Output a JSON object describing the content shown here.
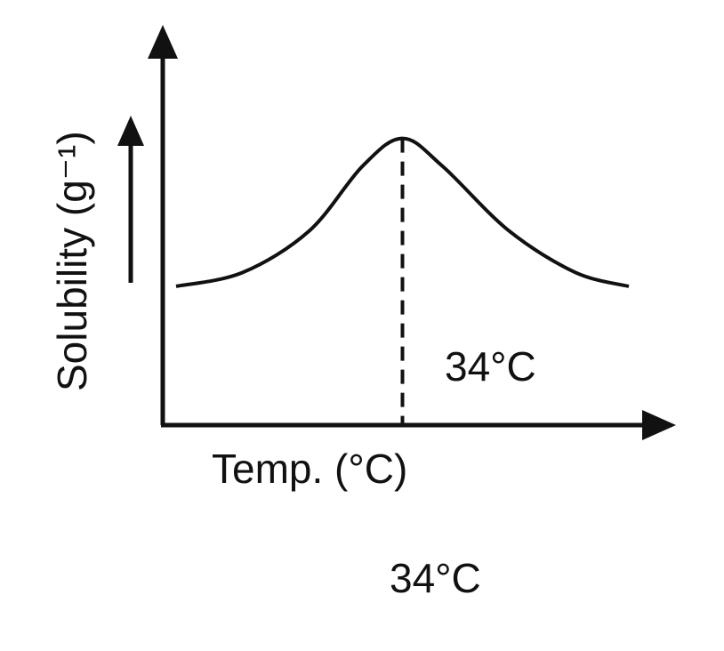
{
  "chart_data": {
    "type": "line",
    "xlabel": "Temp. (°C)",
    "ylabel": "Solubility (g⁻¹)",
    "peak_label": "34°C",
    "footer_label": "34°C",
    "peak_x": 34,
    "ticks_shown": false,
    "grid": false,
    "series": [
      {
        "values_description_free": true,
        "x": [
          0,
          10,
          20,
          28,
          34,
          40,
          50,
          60,
          68
        ],
        "y": [
          1.0,
          1.3,
          2.2,
          3.6,
          4.2,
          3.6,
          2.2,
          1.3,
          1.0
        ]
      }
    ],
    "xlim": [
      -2,
      70
    ],
    "ylim": [
      -2,
      6
    ]
  }
}
